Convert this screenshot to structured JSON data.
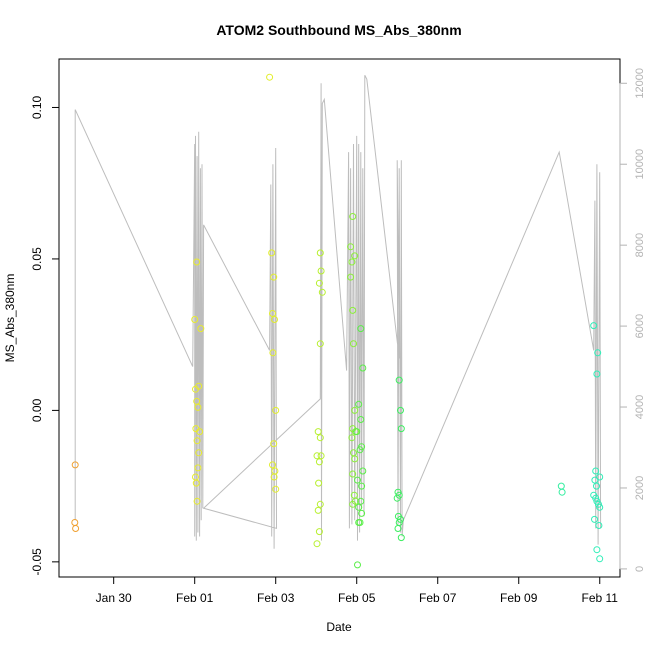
{
  "chart_data": {
    "type": "scatter",
    "title": "ATOM2 Southbound MS_Abs_380nm",
    "xlabel": "Date",
    "ylabel": "MS_Abs_380nm",
    "x_ticks": [
      {
        "day": 30,
        "label": "Jan 30"
      },
      {
        "day": 32,
        "label": "Feb 01"
      },
      {
        "day": 34,
        "label": "Feb 03"
      },
      {
        "day": 36,
        "label": "Feb 05"
      },
      {
        "day": 38,
        "label": "Feb 07"
      },
      {
        "day": 40,
        "label": "Feb 09"
      },
      {
        "day": 42,
        "label": "Feb 11"
      }
    ],
    "xlim": [
      28.65,
      42.5
    ],
    "y_ticks": [
      -0.05,
      0.0,
      0.05,
      0.1
    ],
    "y_tick_labels": [
      "-0.05",
      "0.00",
      "0.05",
      "0.10"
    ],
    "ylim": [
      -0.055,
      0.116
    ],
    "y2_ticks": [
      0,
      2000,
      4000,
      6000,
      8000,
      10000,
      12000
    ],
    "y2_tick_labels": [
      "0",
      "2000",
      "4000",
      "6000",
      "8000",
      "10000",
      "12000"
    ],
    "y2lim": [
      -200,
      12600
    ],
    "grid": false,
    "series": [
      {
        "axis": "left",
        "marker": "open-circle",
        "points": [
          {
            "day": 29.05,
            "y": -0.018,
            "color": "#f0a030"
          },
          {
            "day": 29.04,
            "y": -0.037,
            "color": "#f0a030"
          },
          {
            "day": 29.06,
            "y": -0.039,
            "color": "#f0a030"
          },
          {
            "day": 32.0,
            "y": 0.03,
            "color": "#e8ec2c"
          },
          {
            "day": 32.05,
            "y": 0.049,
            "color": "#e8ec2c"
          },
          {
            "day": 32.15,
            "y": 0.027,
            "color": "#e8ec2c"
          },
          {
            "day": 32.1,
            "y": 0.008,
            "color": "#e8ec2c"
          },
          {
            "day": 32.02,
            "y": 0.007,
            "color": "#e8ec2c"
          },
          {
            "day": 32.05,
            "y": 0.003,
            "color": "#e8ec2c"
          },
          {
            "day": 32.08,
            "y": 0.001,
            "color": "#e8ec2c"
          },
          {
            "day": 32.03,
            "y": -0.006,
            "color": "#e8ec2c"
          },
          {
            "day": 32.12,
            "y": -0.007,
            "color": "#e8ec2c"
          },
          {
            "day": 32.06,
            "y": -0.01,
            "color": "#e8ec2c"
          },
          {
            "day": 32.1,
            "y": -0.014,
            "color": "#e8ec2c"
          },
          {
            "day": 32.08,
            "y": -0.019,
            "color": "#e8ec2c"
          },
          {
            "day": 32.02,
            "y": -0.022,
            "color": "#e8ec2c"
          },
          {
            "day": 32.04,
            "y": -0.024,
            "color": "#e8ec2c"
          },
          {
            "day": 32.06,
            "y": -0.03,
            "color": "#e8ec2c"
          },
          {
            "day": 33.85,
            "y": 0.11,
            "color": "#e2ee2c"
          },
          {
            "day": 33.9,
            "y": 0.052,
            "color": "#e2ee2c"
          },
          {
            "day": 33.95,
            "y": 0.044,
            "color": "#e2ee2c"
          },
          {
            "day": 33.92,
            "y": 0.032,
            "color": "#e2ee2c"
          },
          {
            "day": 33.97,
            "y": 0.03,
            "color": "#e2ee2c"
          },
          {
            "day": 33.93,
            "y": 0.019,
            "color": "#e2ee2c"
          },
          {
            "day": 34.0,
            "y": 0.0,
            "color": "#e2ee2c"
          },
          {
            "day": 33.95,
            "y": -0.011,
            "color": "#e2ee2c"
          },
          {
            "day": 33.92,
            "y": -0.018,
            "color": "#e2ee2c"
          },
          {
            "day": 33.98,
            "y": -0.02,
            "color": "#e2ee2c"
          },
          {
            "day": 33.96,
            "y": -0.022,
            "color": "#e2ee2c"
          },
          {
            "day": 34.0,
            "y": -0.026,
            "color": "#e2ee2c"
          },
          {
            "day": 35.1,
            "y": 0.052,
            "color": "#b8f030"
          },
          {
            "day": 35.12,
            "y": 0.046,
            "color": "#b8f030"
          },
          {
            "day": 35.08,
            "y": 0.042,
            "color": "#b8f030"
          },
          {
            "day": 35.15,
            "y": 0.039,
            "color": "#b8f030"
          },
          {
            "day": 35.1,
            "y": 0.022,
            "color": "#b8f030"
          },
          {
            "day": 35.05,
            "y": -0.007,
            "color": "#b8f030"
          },
          {
            "day": 35.1,
            "y": -0.009,
            "color": "#b8f030"
          },
          {
            "day": 35.02,
            "y": -0.015,
            "color": "#b8f030"
          },
          {
            "day": 35.08,
            "y": -0.017,
            "color": "#b8f030"
          },
          {
            "day": 35.12,
            "y": -0.015,
            "color": "#b8f030"
          },
          {
            "day": 35.06,
            "y": -0.024,
            "color": "#b8f030"
          },
          {
            "day": 35.1,
            "y": -0.031,
            "color": "#b8f030"
          },
          {
            "day": 35.05,
            "y": -0.033,
            "color": "#b8f030"
          },
          {
            "day": 35.08,
            "y": -0.04,
            "color": "#b8f030"
          },
          {
            "day": 35.02,
            "y": -0.044,
            "color": "#b8f030"
          },
          {
            "day": 35.9,
            "y": 0.064,
            "color": "#8cf03a"
          },
          {
            "day": 35.85,
            "y": 0.054,
            "color": "#8cf03a"
          },
          {
            "day": 35.95,
            "y": 0.051,
            "color": "#8cf03a"
          },
          {
            "day": 35.88,
            "y": 0.049,
            "color": "#8cf03a"
          },
          {
            "day": 35.85,
            "y": 0.044,
            "color": "#8cf03a"
          },
          {
            "day": 35.9,
            "y": 0.033,
            "color": "#8cf03a"
          },
          {
            "day": 35.92,
            "y": 0.022,
            "color": "#8cf03a"
          },
          {
            "day": 35.95,
            "y": 0.0,
            "color": "#8cf03a"
          },
          {
            "day": 35.9,
            "y": -0.006,
            "color": "#8cf03a"
          },
          {
            "day": 35.97,
            "y": -0.007,
            "color": "#8cf03a"
          },
          {
            "day": 35.88,
            "y": -0.009,
            "color": "#8cf03a"
          },
          {
            "day": 35.92,
            "y": -0.014,
            "color": "#8cf03a"
          },
          {
            "day": 35.95,
            "y": -0.016,
            "color": "#8cf03a"
          },
          {
            "day": 35.9,
            "y": -0.021,
            "color": "#8cf03a"
          },
          {
            "day": 35.94,
            "y": -0.028,
            "color": "#8cf03a"
          },
          {
            "day": 35.97,
            "y": -0.03,
            "color": "#8cf03a"
          },
          {
            "day": 35.9,
            "y": -0.031,
            "color": "#8cf03a"
          },
          {
            "day": 36.1,
            "y": 0.027,
            "color": "#5aee48"
          },
          {
            "day": 36.15,
            "y": 0.014,
            "color": "#5aee48"
          },
          {
            "day": 36.05,
            "y": 0.002,
            "color": "#5aee48"
          },
          {
            "day": 36.1,
            "y": -0.003,
            "color": "#5aee48"
          },
          {
            "day": 36.0,
            "y": -0.007,
            "color": "#5aee48"
          },
          {
            "day": 36.12,
            "y": -0.012,
            "color": "#5aee48"
          },
          {
            "day": 36.08,
            "y": -0.013,
            "color": "#5aee48"
          },
          {
            "day": 36.15,
            "y": -0.02,
            "color": "#5aee48"
          },
          {
            "day": 36.02,
            "y": -0.023,
            "color": "#5aee48"
          },
          {
            "day": 36.12,
            "y": -0.025,
            "color": "#5aee48"
          },
          {
            "day": 36.1,
            "y": -0.03,
            "color": "#5aee48"
          },
          {
            "day": 36.05,
            "y": -0.032,
            "color": "#5aee48"
          },
          {
            "day": 36.12,
            "y": -0.034,
            "color": "#5aee48"
          },
          {
            "day": 36.05,
            "y": -0.037,
            "color": "#5aee48"
          },
          {
            "day": 36.08,
            "y": -0.037,
            "color": "#5aee48"
          },
          {
            "day": 36.02,
            "y": -0.051,
            "color": "#5aee48"
          },
          {
            "day": 37.05,
            "y": 0.01,
            "color": "#3cee60"
          },
          {
            "day": 37.08,
            "y": 0.0,
            "color": "#3cee60"
          },
          {
            "day": 37.1,
            "y": -0.006,
            "color": "#3cee60"
          },
          {
            "day": 37.02,
            "y": -0.027,
            "color": "#3cee60"
          },
          {
            "day": 37.05,
            "y": -0.028,
            "color": "#3cee60"
          },
          {
            "day": 37.0,
            "y": -0.029,
            "color": "#3cee60"
          },
          {
            "day": 37.03,
            "y": -0.035,
            "color": "#3cee60"
          },
          {
            "day": 37.08,
            "y": -0.036,
            "color": "#3cee60"
          },
          {
            "day": 37.05,
            "y": -0.037,
            "color": "#3cee60"
          },
          {
            "day": 37.02,
            "y": -0.039,
            "color": "#3cee60"
          },
          {
            "day": 37.1,
            "y": -0.042,
            "color": "#3cee60"
          },
          {
            "day": 41.05,
            "y": -0.025,
            "color": "#34eea0"
          },
          {
            "day": 41.07,
            "y": -0.027,
            "color": "#34eea0"
          },
          {
            "day": 41.85,
            "y": 0.028,
            "color": "#30eeb8"
          },
          {
            "day": 41.95,
            "y": 0.019,
            "color": "#30eeb8"
          },
          {
            "day": 41.93,
            "y": 0.012,
            "color": "#30eeb8"
          },
          {
            "day": 41.9,
            "y": -0.02,
            "color": "#30eeb8"
          },
          {
            "day": 42.0,
            "y": -0.022,
            "color": "#30eeb8"
          },
          {
            "day": 41.88,
            "y": -0.023,
            "color": "#30eeb8"
          },
          {
            "day": 41.92,
            "y": -0.025,
            "color": "#30eeb8"
          },
          {
            "day": 41.85,
            "y": -0.028,
            "color": "#30eeb8"
          },
          {
            "day": 41.9,
            "y": -0.029,
            "color": "#30eeb8"
          },
          {
            "day": 41.93,
            "y": -0.03,
            "color": "#30eeb8"
          },
          {
            "day": 41.97,
            "y": -0.031,
            "color": "#30eeb8"
          },
          {
            "day": 42.0,
            "y": -0.032,
            "color": "#30eeb8"
          },
          {
            "day": 41.87,
            "y": -0.036,
            "color": "#30eeb8"
          },
          {
            "day": 41.98,
            "y": -0.038,
            "color": "#30eeb8"
          },
          {
            "day": 41.93,
            "y": -0.046,
            "color": "#30eeb8"
          },
          {
            "day": 42.0,
            "y": -0.049,
            "color": "#30eeb8"
          }
        ]
      },
      {
        "axis": "right",
        "style": "line",
        "color": "#bdbdbd",
        "points": [
          [
            29.05,
            1200
          ],
          [
            29.05,
            11350
          ],
          [
            31.95,
            5000
          ],
          [
            32.0,
            10500
          ],
          [
            32.0,
            800
          ],
          [
            32.02,
            10700
          ],
          [
            32.04,
            700
          ],
          [
            32.06,
            10200
          ],
          [
            32.08,
            900
          ],
          [
            32.1,
            10800
          ],
          [
            32.12,
            800
          ],
          [
            32.14,
            9900
          ],
          [
            32.16,
            1200
          ],
          [
            32.18,
            10000
          ],
          [
            32.2,
            1500
          ],
          [
            32.22,
            8500
          ],
          [
            33.85,
            5400
          ],
          [
            33.88,
            9500
          ],
          [
            33.9,
            800
          ],
          [
            33.93,
            10000
          ],
          [
            33.96,
            500
          ],
          [
            34.0,
            10400
          ],
          [
            34.02,
            1000
          ],
          [
            32.22,
            1500
          ],
          [
            35.1,
            4200
          ],
          [
            35.12,
            12000
          ],
          [
            35.13,
            700
          ],
          [
            35.15,
            11500
          ],
          [
            35.2,
            11600
          ],
          [
            35.75,
            4900
          ],
          [
            35.8,
            10300
          ],
          [
            35.82,
            1000
          ],
          [
            35.85,
            9900
          ],
          [
            35.88,
            1100
          ],
          [
            35.92,
            10500
          ],
          [
            35.95,
            1200
          ],
          [
            36.0,
            10700
          ],
          [
            36.02,
            700
          ],
          [
            36.05,
            10500
          ],
          [
            36.07,
            900
          ],
          [
            36.1,
            10300
          ],
          [
            36.12,
            1500
          ],
          [
            36.15,
            9900
          ],
          [
            36.18,
            1300
          ],
          [
            36.2,
            12200
          ],
          [
            36.25,
            12100
          ],
          [
            37.05,
            5200
          ],
          [
            37.0,
            10100
          ],
          [
            37.02,
            1100
          ],
          [
            37.05,
            9900
          ],
          [
            37.08,
            900
          ],
          [
            37.1,
            10100
          ],
          [
            37.12,
            800
          ],
          [
            37.15,
            1200
          ],
          [
            41.0,
            10300
          ],
          [
            41.85,
            5400
          ],
          [
            41.88,
            9100
          ],
          [
            41.9,
            1000
          ],
          [
            41.93,
            10000
          ],
          [
            41.96,
            600
          ],
          [
            42.0,
            9800
          ],
          [
            42.02,
            1000
          ]
        ]
      }
    ]
  }
}
